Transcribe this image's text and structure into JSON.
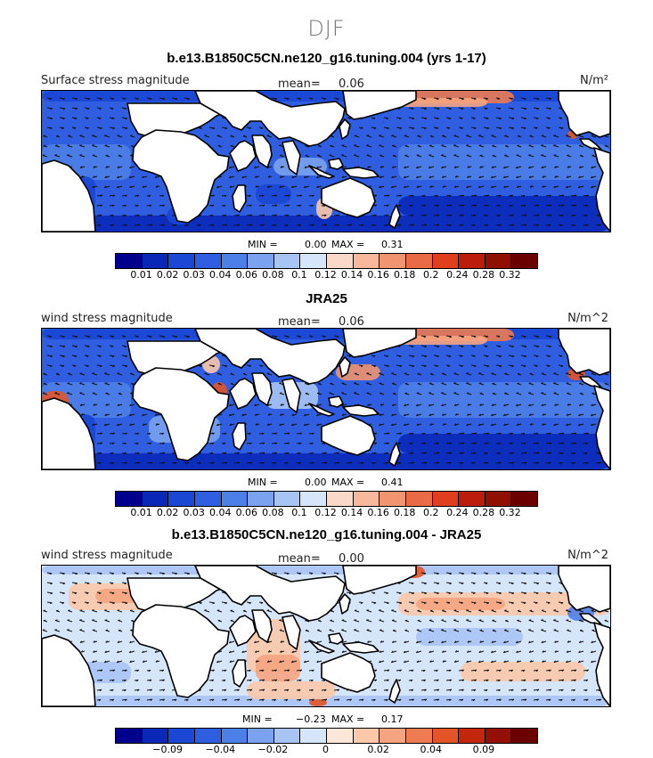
{
  "figure": {
    "season": "DJF"
  },
  "panels": [
    {
      "title": "b.e13.B1850C5CN.ne120_g16.tuning.004 (yrs 1-17)",
      "left_label": "Surface stress magnitude",
      "mean_label": "mean=",
      "mean_value": "0.06",
      "units": "N/m²",
      "min_label": "MIN =",
      "min_value": "0.00",
      "max_label": "MAX =",
      "max_value": "0.31",
      "palette": "abs",
      "tick_labels": [
        "0.01",
        "0.02",
        "0.03",
        "0.04",
        "0.06",
        "0.08",
        "0.1",
        "0.12",
        "0.14",
        "0.16",
        "0.18",
        "0.2",
        "0.24",
        "0.28",
        "0.32"
      ]
    },
    {
      "title": "JRA25",
      "left_label": "wind stress magnitude",
      "mean_label": "mean=",
      "mean_value": "0.06",
      "units": "N/m^2",
      "min_label": "MIN =",
      "min_value": "0.00",
      "max_label": "MAX =",
      "max_value": "0.41",
      "palette": "abs",
      "tick_labels": [
        "0.01",
        "0.02",
        "0.03",
        "0.04",
        "0.06",
        "0.08",
        "0.1",
        "0.12",
        "0.14",
        "0.16",
        "0.18",
        "0.2",
        "0.24",
        "0.28",
        "0.32"
      ]
    },
    {
      "title": "b.e13.B1850C5CN.ne120_g16.tuning.004 - JRA25",
      "left_label": "wind stress magnitude",
      "mean_label": "mean=",
      "mean_value": "0.00",
      "units": "N/m^2",
      "min_label": "MIN =",
      "min_value": "−0.23",
      "max_label": "MAX =",
      "max_value": "0.17",
      "palette": "diff",
      "tick_labels": [
        "−0.09",
        "−0.04",
        "−0.02",
        "0",
        "0.02",
        "0.04",
        "0.09"
      ]
    }
  ],
  "palettes": {
    "abs": [
      "#00008c",
      "#0a28b8",
      "#1a47d4",
      "#2f5fe0",
      "#4d7fe8",
      "#7aa2ee",
      "#a8c4f5",
      "#d6e6fa",
      "#fbd9c8",
      "#f7b89b",
      "#f19470",
      "#e96a45",
      "#df3f1c",
      "#bb1c0c",
      "#901000",
      "#6b0000"
    ],
    "diff": [
      "#00008c",
      "#0a28b8",
      "#1a47d4",
      "#2f5fe0",
      "#4d7fe8",
      "#7aa2ee",
      "#a8c4f5",
      "#d6e6fa",
      "#fde7d9",
      "#fbc8aa",
      "#f5a47f",
      "#ee7b52",
      "#e35427",
      "#c4260b",
      "#941000",
      "#6b0000"
    ]
  }
}
